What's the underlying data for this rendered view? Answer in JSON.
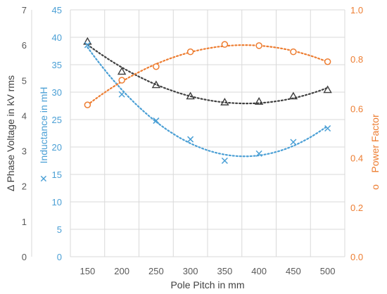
{
  "chart_data": {
    "type": "scatter",
    "title": "",
    "xlabel": "Pole Pitch in mm",
    "x": [
      150,
      200,
      250,
      300,
      350,
      400,
      450,
      500
    ],
    "x_ticks": [
      "150",
      "200",
      "250",
      "300",
      "350",
      "400",
      "450",
      "500"
    ],
    "y_axes": {
      "voltage": {
        "label": "Δ Phase Voltage in kV rms",
        "range": [
          0,
          7
        ],
        "ticks": [
          "0",
          "1",
          "2",
          "3",
          "4",
          "5",
          "6",
          "7"
        ],
        "color": "#595959"
      },
      "inductance": {
        "label": "Inductance in mH",
        "marker": "✕",
        "range": [
          0,
          45
        ],
        "ticks": [
          "0",
          "5",
          "10",
          "15",
          "20",
          "25",
          "30",
          "35",
          "40",
          "45"
        ],
        "color": "#4a9fd5"
      },
      "power_factor": {
        "label": "Power Factor",
        "marker": "o",
        "range": [
          0.0,
          1.0
        ],
        "ticks": [
          "0.0",
          "0.2",
          "0.4",
          "0.6",
          "0.8",
          "1.0"
        ],
        "color": "#ed7d31"
      }
    },
    "series": [
      {
        "axis": "voltage",
        "marker": "triangle",
        "color": "#404040",
        "values": [
          6.1,
          5.25,
          4.87,
          4.55,
          4.38,
          4.4,
          4.55,
          4.73
        ],
        "trend": "polynomial"
      },
      {
        "axis": "inductance",
        "marker": "x",
        "color": "#4a9fd5",
        "values": [
          38.6,
          29.6,
          24.8,
          21.4,
          17.5,
          18.8,
          20.9,
          23.4
        ],
        "trend": "polynomial"
      },
      {
        "axis": "power_factor",
        "marker": "circle",
        "color": "#ed7d31",
        "values": [
          0.615,
          0.715,
          0.77,
          0.83,
          0.86,
          0.855,
          0.83,
          0.79
        ],
        "trend": "polynomial"
      }
    ],
    "grid": true,
    "legend": "none"
  }
}
